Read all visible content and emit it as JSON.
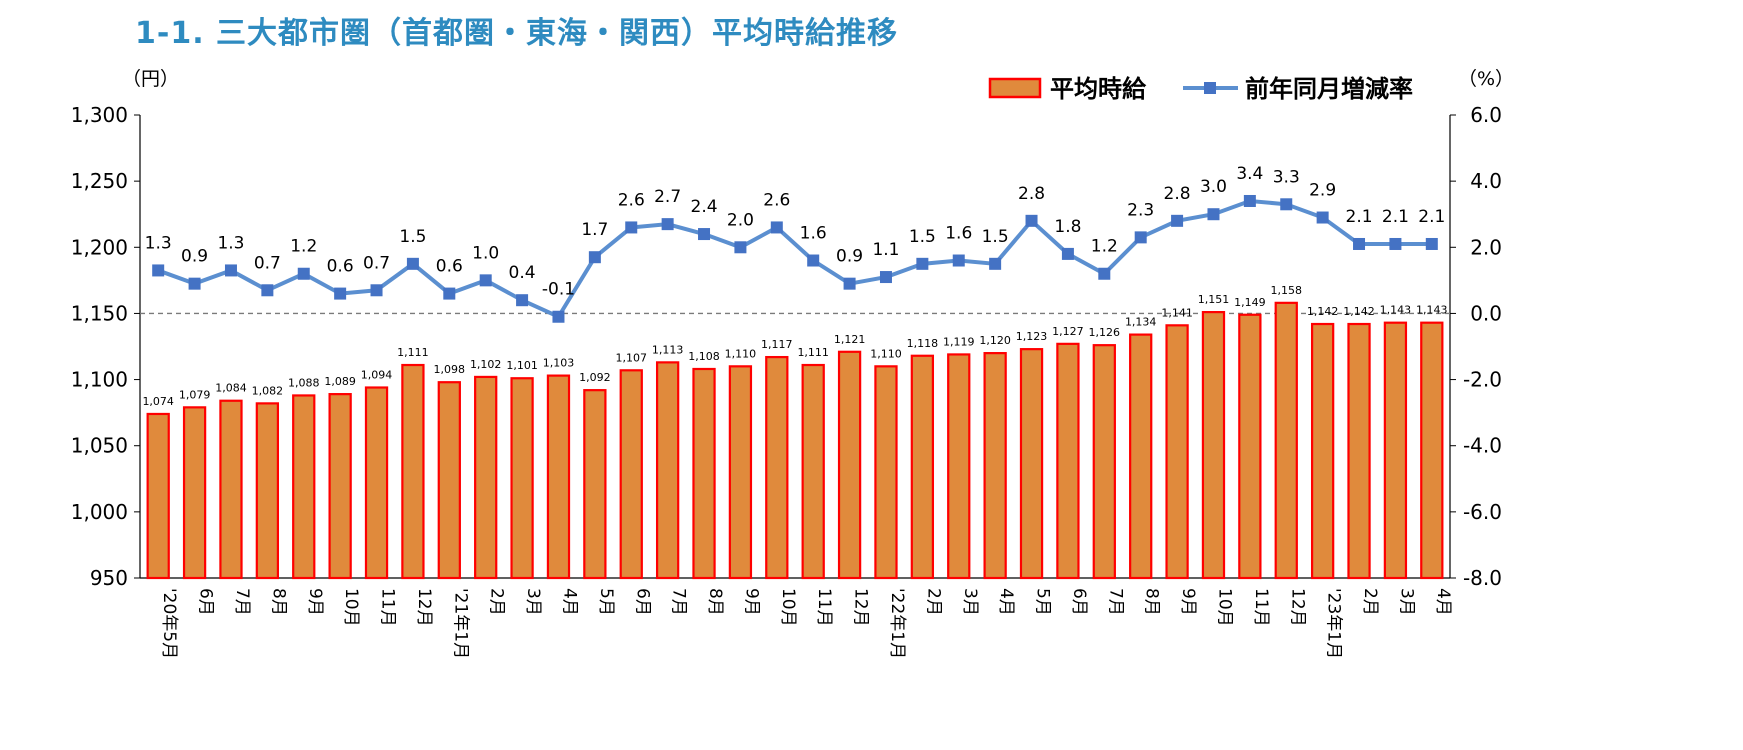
{
  "title": "1-1. 三大都市圏（首都圏・東海・関西）平均時給推移",
  "chart_data": {
    "type": "bar+line",
    "title": "1-1. 三大都市圏（首都圏・東海・関西）平均時給推移",
    "ylabel_left": "（円）",
    "ylabel_right": "（%）",
    "ylim_left": [
      950,
      1300
    ],
    "ylim_right": [
      -8.0,
      6.0
    ],
    "yticks_left": [
      "950",
      "1,000",
      "1,050",
      "1,100",
      "1,150",
      "1,200",
      "1,250",
      "1,300"
    ],
    "yticks_right": [
      "-8.0",
      "-6.0",
      "-4.0",
      "-2.0",
      "0.0",
      "2.0",
      "4.0",
      "6.0"
    ],
    "legend_position": "top-right",
    "categories": [
      "'20年5月",
      "6月",
      "7月",
      "8月",
      "9月",
      "10月",
      "11月",
      "12月",
      "'21年1月",
      "2月",
      "3月",
      "4月",
      "5月",
      "6月",
      "7月",
      "8月",
      "9月",
      "10月",
      "11月",
      "12月",
      "'22年1月",
      "2月",
      "3月",
      "4月",
      "5月",
      "6月",
      "7月",
      "8月",
      "9月",
      "10月",
      "11月",
      "12月",
      "'23年1月",
      "2月",
      "3月",
      "4月"
    ],
    "series": [
      {
        "name": "平均時給",
        "type": "bar",
        "axis": "left",
        "color": "#E08A3C",
        "edge_color": "#FF0000",
        "values": [
          1074,
          1079,
          1084,
          1082,
          1088,
          1089,
          1094,
          1111,
          1098,
          1102,
          1101,
          1103,
          1092,
          1107,
          1113,
          1108,
          1110,
          1117,
          1111,
          1121,
          1110,
          1118,
          1119,
          1120,
          1123,
          1127,
          1126,
          1134,
          1141,
          1151,
          1149,
          1158,
          1142,
          1142,
          1143,
          1143
        ],
        "labels": [
          "1,074",
          "1,079",
          "1,084",
          "1,082",
          "1,088",
          "1,089",
          "1,094",
          "1,111",
          "1,098",
          "1,102",
          "1,101",
          "1,103",
          "1,092",
          "1,107",
          "1,113",
          "1,108",
          "1,110",
          "1,117",
          "1,111",
          "1,121",
          "1,110",
          "1,118",
          "1,119",
          "1,120",
          "1,123",
          "1,127",
          "1,126",
          "1,134",
          "1,141",
          "1,151",
          "1,149",
          "1,158",
          "1,142",
          "1,142",
          "1,143",
          "1,143"
        ]
      },
      {
        "name": "前年同月増減率",
        "type": "line",
        "axis": "right",
        "color": "#5B8FD0",
        "marker_color": "#4472C4",
        "values": [
          1.3,
          0.9,
          1.3,
          0.7,
          1.2,
          0.6,
          0.7,
          1.5,
          0.6,
          1.0,
          0.4,
          -0.1,
          1.7,
          2.6,
          2.7,
          2.4,
          2.0,
          2.6,
          1.6,
          0.9,
          1.1,
          1.5,
          1.6,
          1.5,
          2.8,
          1.8,
          1.2,
          2.3,
          2.8,
          3.0,
          3.4,
          3.3,
          2.9,
          2.1,
          2.1,
          2.1
        ],
        "labels": [
          "1.3",
          "0.9",
          "1.3",
          "0.7",
          "1.2",
          "0.6",
          "0.7",
          "1.5",
          "0.6",
          "1.0",
          "0.4",
          "-0.1",
          "1.7",
          "2.6",
          "2.7",
          "2.4",
          "2.0",
          "2.6",
          "1.6",
          "0.9",
          "1.1",
          "1.5",
          "1.6",
          "1.5",
          "2.8",
          "1.8",
          "1.2",
          "2.3",
          "2.8",
          "3.0",
          "3.4",
          "3.3",
          "2.9",
          "2.1",
          "2.1",
          "2.1"
        ]
      }
    ],
    "reference_line": {
      "axis": "right",
      "value": 0.0,
      "style": "dashed"
    }
  }
}
